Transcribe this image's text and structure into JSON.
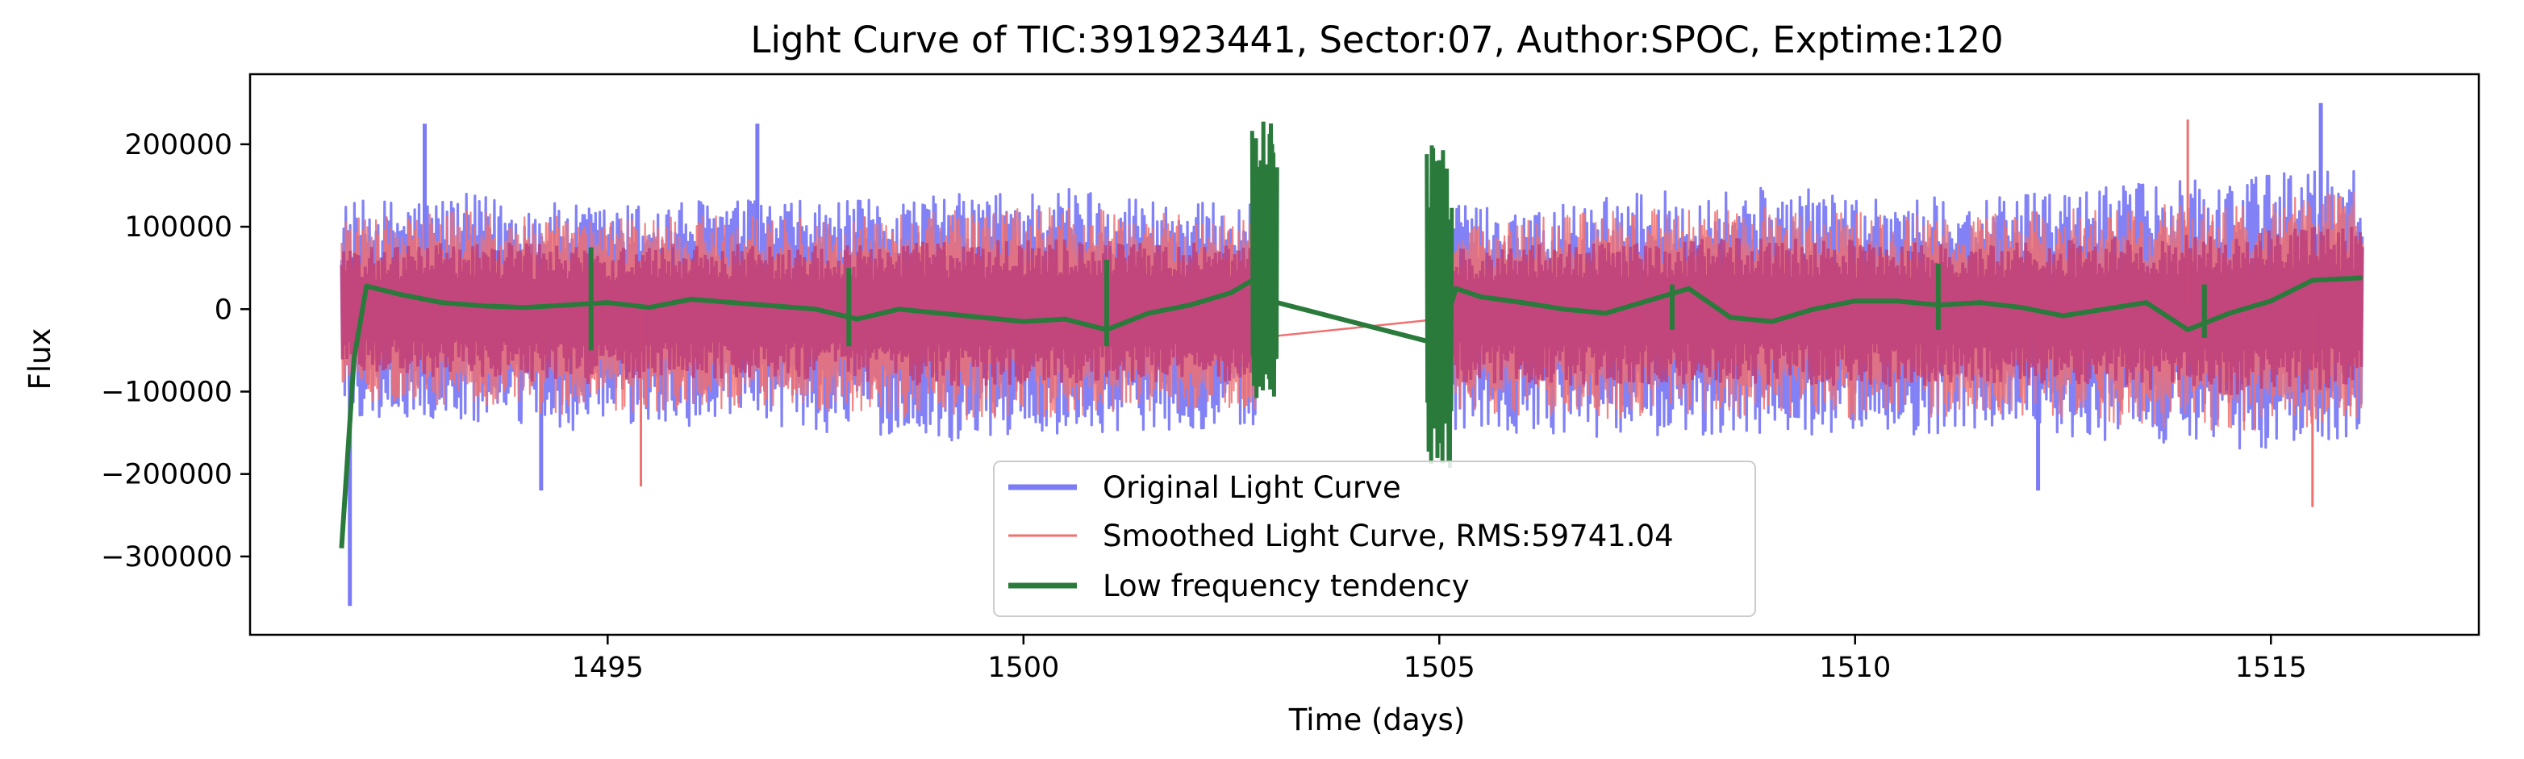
{
  "chart_data": {
    "type": "line",
    "title": "Light Curve of TIC:391923441, Sector:07, Author:SPOC, Exptime:120",
    "xlabel": "Time (days)",
    "ylabel": "Flux",
    "xlim": [
      1490.7,
      1517.5
    ],
    "ylim": [
      -395000,
      285000
    ],
    "x_ticks": [
      1495,
      1500,
      1505,
      1510,
      1515
    ],
    "x_tick_labels": [
      "1495",
      "1500",
      "1505",
      "1510",
      "1515"
    ],
    "y_ticks": [
      -300000,
      -200000,
      -100000,
      0,
      100000,
      200000
    ],
    "y_tick_labels": [
      "−300000",
      "−200000",
      "−100000",
      "0",
      "100000",
      "200000"
    ],
    "grid": false,
    "legend_position": "bottom-center",
    "segments": [
      [
        1491.8,
        1502.8
      ],
      [
        1505.0,
        1516.1
      ]
    ],
    "series": [
      {
        "name": "Original Light Curve",
        "color": "#7b7bf5",
        "style": "noisy",
        "band_hi": [
          130000,
          140000,
          125000,
          135000,
          130000,
          140000,
          150000,
          130000,
          125000,
          140000,
          150000,
          140000,
          135000,
          150000,
          160000,
          180000
        ],
        "band_lo": [
          -130000,
          -140000,
          -150000,
          -140000,
          -150000,
          -160000,
          -150000,
          -145000,
          -150000,
          -160000,
          -150000,
          -155000,
          -150000,
          -160000,
          -170000,
          -160000
        ],
        "peaks": [
          {
            "x": 1492.8,
            "y": 225000
          },
          {
            "x": 1496.8,
            "y": 225000
          },
          {
            "x": 1515.6,
            "y": 250000
          }
        ],
        "troughs": [
          {
            "x": 1491.9,
            "y": -360000
          },
          {
            "x": 1494.2,
            "y": -220000
          },
          {
            "x": 1512.2,
            "y": -220000
          }
        ]
      },
      {
        "name": "Smoothed Light Curve, RMS:59741.04",
        "color": "#f07070",
        "style": "noisy",
        "band_hi": [
          110000,
          120000,
          110000,
          115000,
          110000,
          120000,
          125000,
          115000,
          110000,
          120000,
          125000,
          120000,
          115000,
          125000,
          135000,
          150000
        ],
        "band_lo": [
          -110000,
          -120000,
          -130000,
          -120000,
          -125000,
          -135000,
          -130000,
          -125000,
          -130000,
          -135000,
          -130000,
          -135000,
          -130000,
          -140000,
          -150000,
          -140000
        ],
        "peaks": [
          {
            "x": 1514.0,
            "y": 230000
          }
        ],
        "troughs": [
          {
            "x": 1515.5,
            "y": -240000
          },
          {
            "x": 1495.4,
            "y": -215000
          }
        ],
        "gap_line": [
          [
            1502.8,
            -35000
          ],
          [
            1505.0,
            -12000
          ]
        ]
      },
      {
        "name": "Low frequency tendency",
        "color": "#2a7a3c",
        "style": "trend",
        "x": [
          1491.8,
          1491.95,
          1492.1,
          1492.5,
          1493.0,
          1493.5,
          1494.0,
          1494.5,
          1495.0,
          1495.5,
          1496.0,
          1496.5,
          1497.0,
          1497.5,
          1498.0,
          1498.5,
          1499.0,
          1499.5,
          1500.0,
          1500.5,
          1501.0,
          1501.5,
          1502.0,
          1502.5,
          1502.8,
          1505.0,
          1505.2,
          1505.5,
          1506.0,
          1506.5,
          1507.0,
          1507.5,
          1508.0,
          1508.5,
          1509.0,
          1509.5,
          1510.0,
          1510.5,
          1511.0,
          1511.5,
          1512.0,
          1512.5,
          1513.0,
          1513.5,
          1514.0,
          1514.5,
          1515.0,
          1515.5,
          1516.1
        ],
        "y": [
          -290000,
          -60000,
          28000,
          18000,
          8000,
          4000,
          2000,
          5000,
          8000,
          2000,
          12000,
          8000,
          4000,
          0,
          -12000,
          0,
          -5000,
          -10000,
          -15000,
          -12000,
          -25000,
          -5000,
          5000,
          20000,
          38000,
          -40000,
          25000,
          15000,
          8000,
          0,
          -5000,
          10000,
          25000,
          -10000,
          -15000,
          0,
          10000,
          10000,
          5000,
          8000,
          2000,
          -8000,
          0,
          8000,
          -25000,
          -5000,
          10000,
          35000,
          38000
        ],
        "spikes": [
          {
            "x": 1494.8,
            "lo": -50000,
            "hi": 75000
          },
          {
            "x": 1497.9,
            "lo": -45000,
            "hi": 50000
          },
          {
            "x": 1501.0,
            "lo": -45000,
            "hi": 60000
          },
          {
            "x": 1507.8,
            "lo": -25000,
            "hi": 30000
          },
          {
            "x": 1511.0,
            "lo": -25000,
            "hi": 55000
          },
          {
            "x": 1514.2,
            "lo": -35000,
            "hi": 30000
          }
        ],
        "edge_bursts": [
          {
            "x0": 1502.75,
            "x1": 1503.05,
            "lo": -110000,
            "hi": 230000
          },
          {
            "x0": 1504.85,
            "x1": 1505.15,
            "lo": -200000,
            "hi": 200000
          }
        ],
        "gap_line": [
          [
            1503.05,
            8000
          ],
          [
            1504.9,
            -40000
          ]
        ]
      }
    ]
  }
}
